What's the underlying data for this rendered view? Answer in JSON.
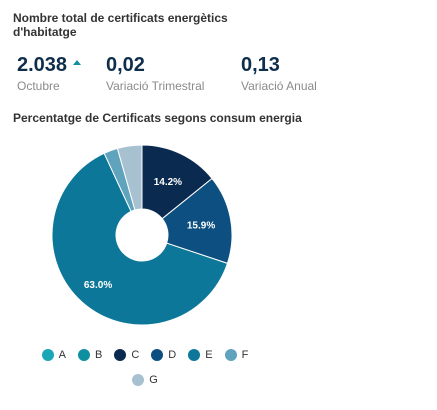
{
  "title": "Nombre total de certificats energètics d'habitatge",
  "kpis": [
    {
      "value": "2.038",
      "label": "Octubre",
      "trend": "up"
    },
    {
      "value": "0,02",
      "label": "Variació Trimestral"
    },
    {
      "value": "0,13",
      "label": "Variació Anual"
    }
  ],
  "chart_title": "Percentatge de Certificats segons consum energia",
  "colors": {
    "accent": "#0f8fa0",
    "kpi_value": "#0f2e4b"
  },
  "chart_data": {
    "type": "pie",
    "donut": true,
    "title": "Percentatge de Certificats segons consum energia",
    "categories": [
      "A",
      "B",
      "C",
      "D",
      "E",
      "F",
      "G"
    ],
    "values": [
      0.0,
      0.0,
      14.2,
      15.9,
      63.0,
      2.5,
      4.4
    ],
    "data_labels": [
      "",
      "",
      "14.2%",
      "15.9%",
      "63.0%",
      "",
      ""
    ],
    "colors": [
      "#1aa6b7",
      "#0f8fa0",
      "#0b2a4f",
      "#0d4f80",
      "#0d7799",
      "#5fa3bd",
      "#a7c1d1"
    ],
    "legend_placement": "bottom"
  },
  "legend_rows": [
    [
      "A",
      "B",
      "C",
      "D",
      "E",
      "F"
    ],
    [
      "G"
    ]
  ]
}
